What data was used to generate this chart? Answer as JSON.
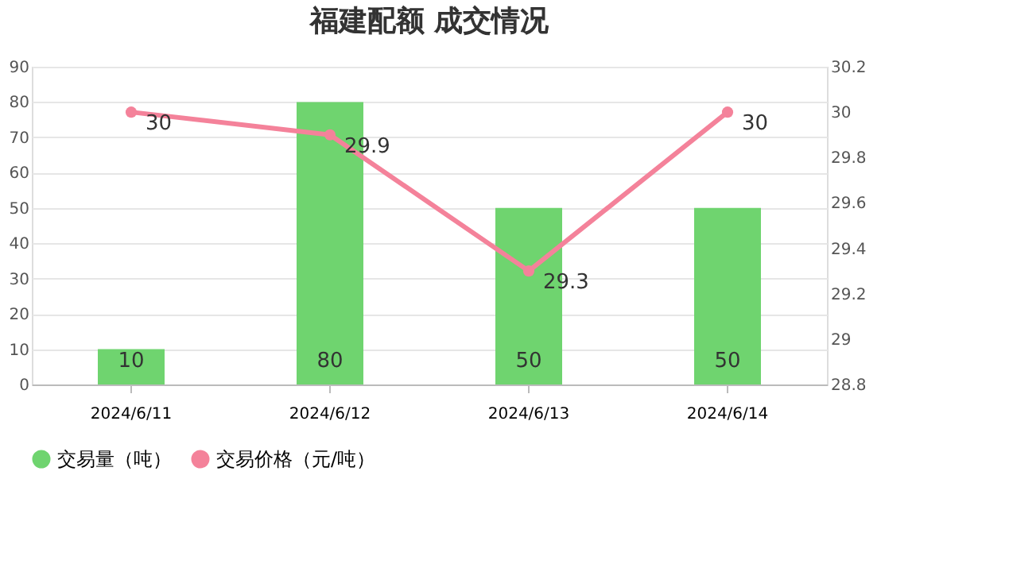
{
  "chart_data": {
    "type": "bar",
    "title": "福建配额 成交情况",
    "categories": [
      "2024/6/11",
      "2024/6/12",
      "2024/6/13",
      "2024/6/14"
    ],
    "series": [
      {
        "name": "交易量（吨）",
        "color": "#6fd46f",
        "values": [
          10,
          80,
          50,
          50
        ]
      },
      {
        "name": "交易价格（元/吨）",
        "type": "line",
        "axis": "y2",
        "color": "#f4829a",
        "values": [
          30,
          29.9,
          29.3,
          30
        ]
      }
    ],
    "ylim": [
      0,
      90
    ],
    "yticks": [
      0,
      10,
      20,
      30,
      40,
      50,
      60,
      70,
      80,
      90
    ],
    "y2lim": [
      28.8,
      30.2
    ],
    "y2ticks": [
      28.8,
      29,
      29.2,
      29.4,
      29.6,
      29.8,
      30,
      30.2
    ],
    "data_labels": true,
    "grid": "y",
    "legend": "bottom",
    "marker": "circle",
    "line_style": "solid"
  }
}
